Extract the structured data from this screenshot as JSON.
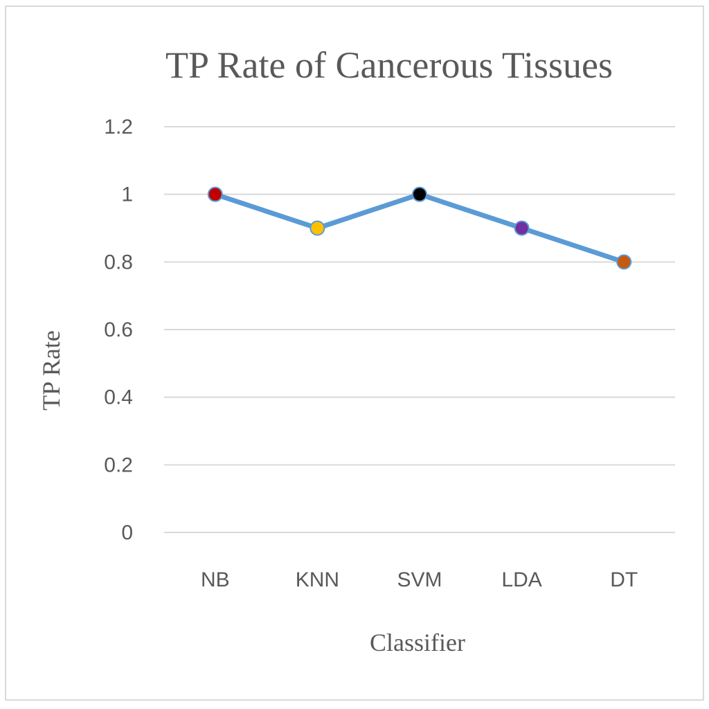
{
  "chart_data": {
    "type": "line",
    "title": "TP Rate of Cancerous Tissues",
    "xlabel": "Classifier",
    "ylabel": "TP Rate",
    "categories": [
      "NB",
      "KNN",
      "SVM",
      "LDA",
      "DT"
    ],
    "series": [
      {
        "values": [
          1.0,
          0.9,
          1.0,
          0.9,
          0.8
        ],
        "color": "#5b9bd5",
        "marker_colors": [
          "#c00000",
          "#ffc000",
          "#000000",
          "#7030a0",
          "#c55a11"
        ]
      }
    ],
    "ylim": [
      0,
      1.2
    ],
    "yticks": [
      "0",
      "0.2",
      "0.4",
      "0.6",
      "0.8",
      "1",
      "1.2"
    ],
    "grid": true,
    "legend": "none"
  }
}
